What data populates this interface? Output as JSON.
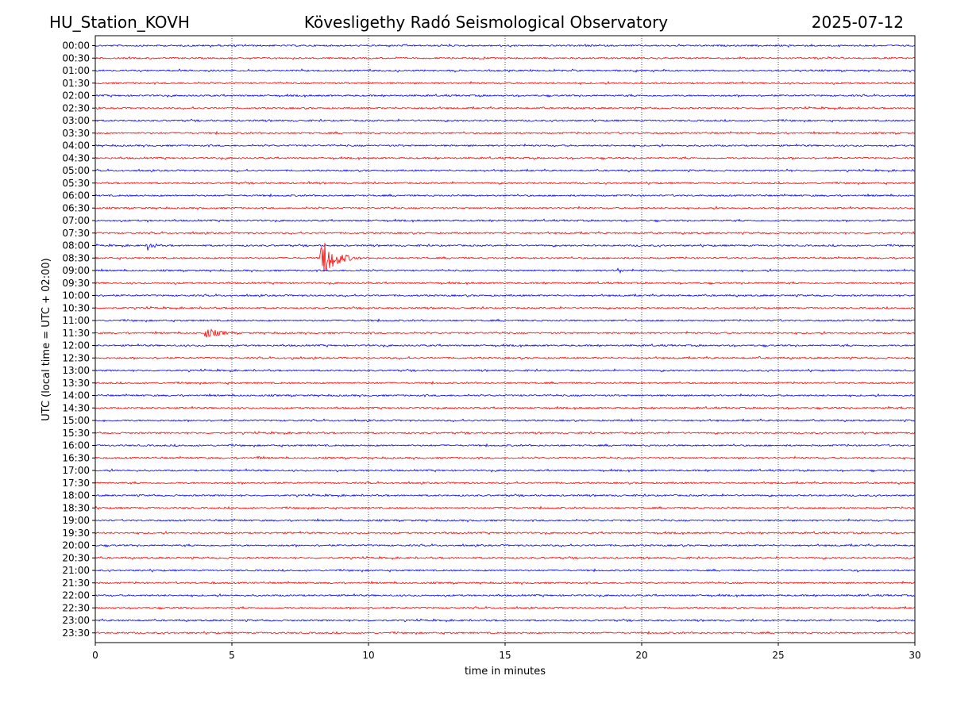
{
  "header": {
    "station": "HU_Station_KOVH",
    "title": "Kövesligethy Radó Seismological Observatory",
    "date": "2025-07-12"
  },
  "colors": {
    "blue": "#0000ff",
    "red": "#ff0000",
    "axis": "#000000",
    "grid": "#000000"
  },
  "chart_data": {
    "type": "line",
    "xlabel": "time in minutes",
    "ylabel": "UTC (local time = UTC + 02:00)",
    "xlim": [
      0,
      30
    ],
    "xticks": [
      0,
      5,
      10,
      15,
      20,
      25,
      30
    ],
    "x_gridlines": [
      5,
      10,
      15,
      20,
      25
    ],
    "grid": "vertical dotted",
    "series_colors": [
      "blue",
      "red"
    ],
    "rows": [
      "00:00",
      "00:30",
      "01:00",
      "01:30",
      "02:00",
      "02:30",
      "03:00",
      "03:30",
      "04:00",
      "04:30",
      "05:00",
      "05:30",
      "06:00",
      "06:30",
      "07:00",
      "07:30",
      "08:00",
      "08:30",
      "09:00",
      "09:30",
      "10:00",
      "10:30",
      "11:00",
      "11:30",
      "12:00",
      "12:30",
      "13:00",
      "13:30",
      "14:00",
      "14:30",
      "15:00",
      "15:30",
      "16:00",
      "16:30",
      "17:00",
      "17:30",
      "18:00",
      "18:30",
      "19:00",
      "19:30",
      "20:00",
      "20:30",
      "21:00",
      "21:30",
      "22:00",
      "22:30",
      "23:00",
      "23:30"
    ],
    "events": [
      {
        "row": "00:00",
        "minute": 24.6,
        "amplitude": 0.4,
        "duration": 0.3
      },
      {
        "row": "02:00",
        "minute": 14.0,
        "amplitude": 0.3,
        "duration": 0.5
      },
      {
        "row": "05:00",
        "minute": 25.3,
        "amplitude": 0.3,
        "duration": 0.6
      },
      {
        "row": "05:30",
        "minute": 0.5,
        "amplitude": 0.3,
        "duration": 0.3
      },
      {
        "row": "05:30",
        "minute": 7.8,
        "amplitude": 0.4,
        "duration": 0.2
      },
      {
        "row": "07:00",
        "minute": 1.9,
        "amplitude": 0.3,
        "duration": 0.4
      },
      {
        "row": "07:30",
        "minute": 15.5,
        "amplitude": 0.3,
        "duration": 0.2
      },
      {
        "row": "08:00",
        "minute": 1.9,
        "amplitude": 1.0,
        "duration": 0.8
      },
      {
        "row": "08:30",
        "minute": 8.2,
        "amplitude": 4.0,
        "duration": 1.6
      },
      {
        "row": "08:30",
        "minute": 12.1,
        "amplitude": 0.3,
        "duration": 0.3
      },
      {
        "row": "09:00",
        "minute": 19.1,
        "amplitude": 0.7,
        "duration": 0.6
      },
      {
        "row": "09:30",
        "minute": 23.9,
        "amplitude": 0.4,
        "duration": 0.3
      },
      {
        "row": "11:30",
        "minute": 4.0,
        "amplitude": 0.9,
        "duration": 2.0
      },
      {
        "row": "12:30",
        "minute": 7.2,
        "amplitude": 0.4,
        "duration": 0.5
      },
      {
        "row": "12:30",
        "minute": 24.3,
        "amplitude": 0.3,
        "duration": 0.3
      },
      {
        "row": "14:30",
        "minute": 29.0,
        "amplitude": 0.3,
        "duration": 0.6
      },
      {
        "row": "15:00",
        "minute": 0.3,
        "amplitude": 0.3,
        "duration": 0.3
      },
      {
        "row": "15:00",
        "minute": 19.6,
        "amplitude": 0.3,
        "duration": 0.3
      },
      {
        "row": "16:30",
        "minute": 5.9,
        "amplitude": 0.5,
        "duration": 0.5
      },
      {
        "row": "21:00",
        "minute": 27.9,
        "amplitude": 0.3,
        "duration": 0.4
      },
      {
        "row": "21:30",
        "minute": 4.3,
        "amplitude": 0.4,
        "duration": 0.2
      }
    ]
  }
}
